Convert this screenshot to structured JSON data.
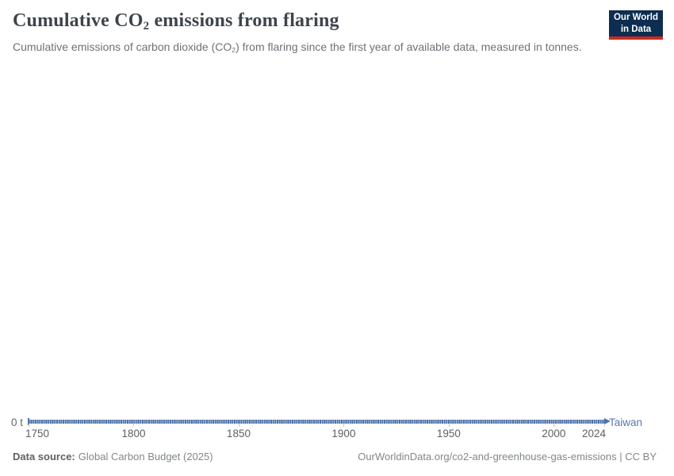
{
  "header": {
    "title_pre": "Cumulative CO",
    "title_sub": "2",
    "title_post": " emissions from flaring",
    "subtitle_pre": "Cumulative emissions of carbon dioxide (CO",
    "subtitle_sub": "2",
    "subtitle_post": ") from flaring since the first year of available data, measured in tonnes.",
    "logo": {
      "line1": "Our World",
      "line2": "in Data"
    }
  },
  "footer": {
    "source_label": "Data source:",
    "source_value": "Global Carbon Budget (2025)",
    "url": "OurWorldinData.org/co2-and-greenhouse-gas-emissions",
    "license_suffix": " | CC BY"
  },
  "colors": {
    "series_blue": "#4d72a9",
    "series_blue_light": "#b0c0da",
    "entity_label_blue": "#5878ab",
    "logo_navy": "#0d2d51",
    "logo_red": "#cc2a1f",
    "title_grey": "#3d444b",
    "subtitle_grey": "#6d7278",
    "axis_grey": "#5c6165"
  },
  "chart_data": {
    "type": "line",
    "title": "Cumulative CO₂ emissions from flaring",
    "subtitle": "Cumulative emissions of carbon dioxide (CO₂) from flaring since the first year of available data, measured in tonnes.",
    "unit": "tonnes",
    "xlabel": "",
    "ylabel": "",
    "x_range": [
      1750,
      2024
    ],
    "x_ticks": [
      1750,
      1800,
      1850,
      1900,
      1950,
      2000,
      2024
    ],
    "y_tick_labels": [
      "0 t"
    ],
    "ylim": [
      0,
      0
    ],
    "grid": false,
    "legend_position": "end-of-line",
    "series": [
      {
        "name": "Taiwan",
        "color": "#4d72a9",
        "x": [
          1750,
          1800,
          1850,
          1900,
          1950,
          2000,
          2024
        ],
        "values": [
          0,
          0,
          0,
          0,
          0,
          0,
          0
        ],
        "constant_value": 0
      }
    ]
  }
}
